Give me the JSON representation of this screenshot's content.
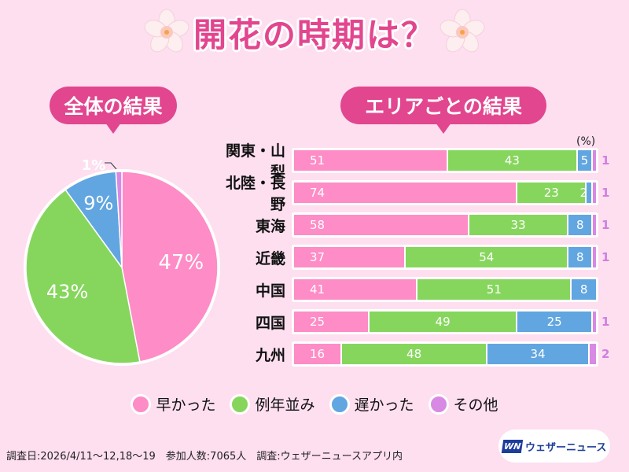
{
  "title": "開花の時期は？",
  "overall_label": "全体の結果",
  "area_label": "エリアごとの結果",
  "unit_label": "(%)",
  "colors": {
    "early": "#fe8cc6",
    "normal": "#86d65d",
    "late": "#61a6e0",
    "other": "#d889e3",
    "accent": "#e2468f"
  },
  "chart_data": [
    {
      "type": "pie",
      "title": "全体の結果",
      "labels": [
        "早かった",
        "例年並み",
        "遅かった",
        "その他"
      ],
      "values": [
        47,
        43,
        9,
        1
      ],
      "value_labels": [
        "47%",
        "43%",
        "9%",
        "1%"
      ]
    },
    {
      "type": "bar",
      "stacked": true,
      "orientation": "horizontal",
      "title": "エリアごとの結果",
      "unit": "%",
      "categories": [
        "関東・山梨",
        "北陸・長野",
        "東海",
        "近畿",
        "中国",
        "四国",
        "九州"
      ],
      "series": [
        {
          "name": "早かった",
          "values": [
            51,
            74,
            58,
            37,
            41,
            25,
            16
          ]
        },
        {
          "name": "例年並み",
          "values": [
            43,
            23,
            33,
            54,
            51,
            49,
            48
          ]
        },
        {
          "name": "遅かった",
          "values": [
            5,
            2,
            8,
            8,
            8,
            25,
            34
          ]
        },
        {
          "name": "その他",
          "values": [
            1,
            1,
            1,
            1,
            0,
            1,
            2
          ]
        }
      ]
    }
  ],
  "legend": [
    {
      "key": "early",
      "label": "早かった"
    },
    {
      "key": "normal",
      "label": "例年並み"
    },
    {
      "key": "late",
      "label": "遅かった"
    },
    {
      "key": "other",
      "label": "その他"
    }
  ],
  "footer": "調査日:2026/4/11～12,18～19　参加人数:7065人　調査:ウェザーニュースアプリ内",
  "logo": {
    "mark": "WN",
    "text": "ウェザーニュース"
  }
}
